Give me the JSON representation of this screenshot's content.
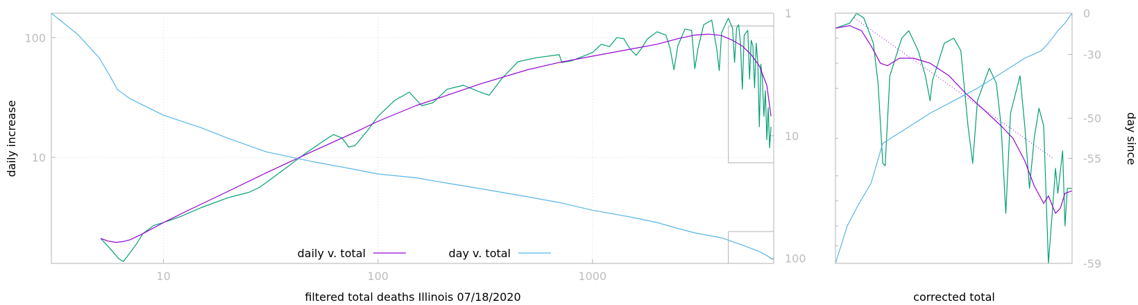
{
  "colors": {
    "daily": "#9400d3",
    "day": "#56b4e9",
    "raw": "#009e73",
    "tick": "#bdbdbd",
    "frame": "#b3b3b3"
  },
  "chart_data": [
    {
      "type": "line",
      "xlabel": "filtered total deaths Illinois 07/18/2020",
      "ylabel": "daily increase",
      "y2label": "",
      "xscale": "log",
      "yscale": "log",
      "xlim": [
        3,
        7000
      ],
      "ylim": [
        1.3,
        160
      ],
      "y2lim": [
        1,
        110
      ],
      "y2_reversed": true,
      "grid": true,
      "legend_position": "bottom-center",
      "xticks": [
        "10",
        "100",
        "1000"
      ],
      "yticks": [
        "10",
        "100"
      ],
      "y2ticks": [
        "1",
        "10",
        "100"
      ],
      "series": [
        {
          "name": "daily v. total",
          "color": "#9400d3",
          "axis": "y",
          "points": [
            [
              5.1,
              2.1
            ],
            [
              5.5,
              2.0
            ],
            [
              6,
              1.95
            ],
            [
              6.5,
              1.98
            ],
            [
              7,
              2.05
            ],
            [
              8,
              2.3
            ],
            [
              10,
              2.85
            ],
            [
              13,
              3.6
            ],
            [
              20,
              5.2
            ],
            [
              30,
              7.4
            ],
            [
              50,
              11.3
            ],
            [
              80,
              16.5
            ],
            [
              100,
              20
            ],
            [
              150,
              27
            ],
            [
              200,
              32
            ],
            [
              300,
              41
            ],
            [
              500,
              54
            ],
            [
              700,
              62
            ],
            [
              1000,
              70
            ],
            [
              1500,
              80
            ],
            [
              2000,
              88
            ],
            [
              2500,
              98
            ],
            [
              3000,
              105
            ],
            [
              3500,
              107
            ],
            [
              4000,
              104
            ],
            [
              4500,
              95
            ],
            [
              5000,
              85
            ],
            [
              5500,
              72
            ],
            [
              6000,
              58
            ],
            [
              6500,
              40
            ],
            [
              6800,
              22
            ]
          ]
        },
        {
          "name": "day v. total",
          "color": "#56b4e9",
          "axis": "y2",
          "points": [
            [
              3,
              1
            ],
            [
              4,
              1.5
            ],
            [
              5,
              2.3
            ],
            [
              5.6,
              3.2
            ],
            [
              6.1,
              4.2
            ],
            [
              7,
              5
            ],
            [
              10,
              6.8
            ],
            [
              15,
              8.6
            ],
            [
              20,
              10.5
            ],
            [
              30,
              13.5
            ],
            [
              50,
              16.3
            ],
            [
              80,
              19
            ],
            [
              100,
              20.5
            ],
            [
              150,
              22
            ],
            [
              200,
              24
            ],
            [
              300,
              27
            ],
            [
              500,
              31.5
            ],
            [
              700,
              35
            ],
            [
              1000,
              40.5
            ],
            [
              1500,
              46
            ],
            [
              2000,
              51
            ],
            [
              2500,
              57
            ],
            [
              3000,
              62
            ],
            [
              4000,
              68
            ],
            [
              5000,
              78
            ],
            [
              5500,
              83
            ],
            [
              6000,
              88
            ],
            [
              6500,
              95
            ],
            [
              7000,
              103
            ]
          ]
        },
        {
          "name": "",
          "color": "#009e73",
          "axis": "y",
          "points": [
            [
              5.1,
              2.1
            ],
            [
              5.6,
              1.75
            ],
            [
              6.2,
              1.42
            ],
            [
              6.5,
              1.35
            ],
            [
              6.9,
              1.55
            ],
            [
              7.5,
              1.9
            ],
            [
              8,
              2.3
            ],
            [
              9,
              2.7
            ],
            [
              10,
              2.85
            ],
            [
              12,
              3.2
            ],
            [
              15,
              3.8
            ],
            [
              20,
              4.6
            ],
            [
              25,
              5.1
            ],
            [
              28,
              5.6
            ],
            [
              35,
              7.5
            ],
            [
              45,
              10.5
            ],
            [
              55,
              13.5
            ],
            [
              62,
              15.5
            ],
            [
              68,
              14.5
            ],
            [
              73,
              12.2
            ],
            [
              78,
              12.5
            ],
            [
              90,
              17
            ],
            [
              100,
              22
            ],
            [
              120,
              30
            ],
            [
              140,
              35
            ],
            [
              160,
              27
            ],
            [
              180,
              28.5
            ],
            [
              210,
              37
            ],
            [
              250,
              40
            ],
            [
              300,
              35
            ],
            [
              330,
              33
            ],
            [
              380,
              46
            ],
            [
              450,
              63
            ],
            [
              550,
              68
            ],
            [
              700,
              72
            ],
            [
              720,
              62
            ],
            [
              800,
              64
            ],
            [
              1000,
              75
            ],
            [
              1100,
              88
            ],
            [
              1200,
              84
            ],
            [
              1300,
              100
            ],
            [
              1400,
              98
            ],
            [
              1500,
              80
            ],
            [
              1600,
              71
            ],
            [
              1700,
              82
            ],
            [
              1800,
              97
            ],
            [
              2000,
              112
            ],
            [
              2200,
              105
            ],
            [
              2300,
              82
            ],
            [
              2400,
              54
            ],
            [
              2500,
              85
            ],
            [
              2700,
              118
            ],
            [
              2900,
              115
            ],
            [
              3000,
              55
            ],
            [
              3100,
              80
            ],
            [
              3300,
              128
            ],
            [
              3600,
              140
            ],
            [
              3800,
              80
            ],
            [
              3900,
              53
            ],
            [
              4000,
              110
            ],
            [
              4300,
              145
            ],
            [
              4500,
              120
            ],
            [
              4600,
              62
            ],
            [
              4700,
              120
            ],
            [
              4800,
              128
            ],
            [
              4900,
              90
            ],
            [
              5000,
              37
            ],
            [
              5100,
              105
            ],
            [
              5300,
              115
            ],
            [
              5400,
              45
            ],
            [
              5500,
              95
            ],
            [
              5600,
              85
            ],
            [
              5700,
              38
            ],
            [
              5800,
              90
            ],
            [
              5900,
              62
            ],
            [
              6000,
              18
            ],
            [
              6100,
              60
            ],
            [
              6200,
              45
            ],
            [
              6300,
              22
            ],
            [
              6400,
              36
            ],
            [
              6500,
              14
            ],
            [
              6600,
              26
            ],
            [
              6700,
              12
            ],
            [
              6800,
              18
            ]
          ]
        }
      ],
      "annotations": [
        {
          "kind": "box",
          "x": [
            4300,
            7000
          ],
          "y": [
            9,
            125
          ]
        },
        {
          "kind": "box",
          "x": [
            4300,
            7000
          ],
          "y": [
            1.3,
            2.4
          ]
        }
      ]
    },
    {
      "type": "line",
      "xlabel": "corrected total",
      "ylabel": "",
      "y2label": "day since",
      "y2ticks": [
        "0",
        "-30",
        "-50",
        "-55",
        "-59"
      ],
      "series": [
        {
          "name": "",
          "color": "#9400d3",
          "points": [
            [
              0,
              0.06
            ],
            [
              0.06,
              0.05
            ],
            [
              0.11,
              0.07
            ],
            [
              0.15,
              0.13
            ],
            [
              0.19,
              0.2
            ],
            [
              0.22,
              0.21
            ],
            [
              0.27,
              0.18
            ],
            [
              0.33,
              0.18
            ],
            [
              0.4,
              0.2
            ],
            [
              0.48,
              0.25
            ],
            [
              0.55,
              0.32
            ],
            [
              0.62,
              0.38
            ],
            [
              0.7,
              0.45
            ],
            [
              0.75,
              0.5
            ],
            [
              0.8,
              0.59
            ],
            [
              0.84,
              0.69
            ],
            [
              0.88,
              0.76
            ],
            [
              0.9,
              0.73
            ],
            [
              0.93,
              0.8
            ],
            [
              0.95,
              0.78
            ],
            [
              0.97,
              0.72
            ],
            [
              1.0,
              0.71
            ]
          ]
        },
        {
          "name": "",
          "color": "#56b4e9",
          "points": [
            [
              0,
              1.0
            ],
            [
              0.05,
              0.85
            ],
            [
              0.1,
              0.76
            ],
            [
              0.15,
              0.68
            ],
            [
              0.2,
              0.52
            ],
            [
              0.3,
              0.46
            ],
            [
              0.4,
              0.4
            ],
            [
              0.5,
              0.35
            ],
            [
              0.6,
              0.3
            ],
            [
              0.7,
              0.24
            ],
            [
              0.8,
              0.18
            ],
            [
              0.87,
              0.15
            ],
            [
              0.9,
              0.12
            ],
            [
              0.94,
              0.07
            ],
            [
              0.97,
              0.04
            ],
            [
              1.0,
              0.0
            ]
          ]
        },
        {
          "name": "",
          "color": "#009e73",
          "points": [
            [
              0,
              0.06
            ],
            [
              0.06,
              0.04
            ],
            [
              0.09,
              0.0
            ],
            [
              0.12,
              0.02
            ],
            [
              0.16,
              0.12
            ],
            [
              0.18,
              0.28
            ],
            [
              0.2,
              0.6
            ],
            [
              0.21,
              0.61
            ],
            [
              0.23,
              0.25
            ],
            [
              0.28,
              0.1
            ],
            [
              0.31,
              0.07
            ],
            [
              0.35,
              0.15
            ],
            [
              0.38,
              0.25
            ],
            [
              0.4,
              0.35
            ],
            [
              0.41,
              0.27
            ],
            [
              0.46,
              0.12
            ],
            [
              0.5,
              0.1
            ],
            [
              0.53,
              0.15
            ],
            [
              0.56,
              0.45
            ],
            [
              0.58,
              0.6
            ],
            [
              0.6,
              0.35
            ],
            [
              0.65,
              0.22
            ],
            [
              0.68,
              0.28
            ],
            [
              0.7,
              0.45
            ],
            [
              0.72,
              0.8
            ],
            [
              0.74,
              0.4
            ],
            [
              0.78,
              0.25
            ],
            [
              0.8,
              0.45
            ],
            [
              0.82,
              0.7
            ],
            [
              0.84,
              0.5
            ],
            [
              0.86,
              0.38
            ],
            [
              0.88,
              0.45
            ],
            [
              0.9,
              1.0
            ],
            [
              0.92,
              0.75
            ],
            [
              0.93,
              0.62
            ],
            [
              0.94,
              0.72
            ],
            [
              0.96,
              0.55
            ],
            [
              0.97,
              0.85
            ],
            [
              0.98,
              0.7
            ],
            [
              1.0,
              0.7
            ]
          ]
        },
        {
          "name": "",
          "color": "#9400d3",
          "style": "dotted",
          "points": [
            [
              0.08,
              0.02
            ],
            [
              0.92,
              0.58
            ]
          ]
        }
      ]
    }
  ]
}
